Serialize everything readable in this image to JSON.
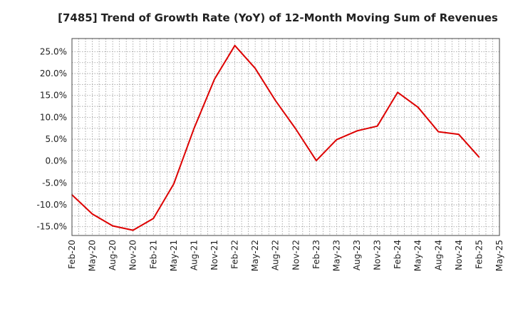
{
  "chart_data": {
    "type": "line",
    "title": "[7485]  Trend of Growth Rate (YoY) of 12-Month Moving Sum of Revenues",
    "xlabel": "",
    "ylabel": "",
    "x_tick_labels": [
      "Feb-20",
      "May-20",
      "Aug-20",
      "Nov-20",
      "Feb-21",
      "May-21",
      "Aug-21",
      "Nov-21",
      "Feb-22",
      "May-22",
      "Aug-22",
      "Nov-22",
      "Feb-23",
      "May-23",
      "Aug-23",
      "Nov-23",
      "Feb-24",
      "May-24",
      "Aug-24",
      "Nov-24",
      "Feb-25",
      "May-25"
    ],
    "y_ticks": [
      -15,
      -10,
      -5,
      0,
      5,
      10,
      15,
      20,
      25
    ],
    "y_tick_labels": [
      "-15.0%",
      "-10.0%",
      "-5.0%",
      "0.0%",
      "5.0%",
      "10.0%",
      "15.0%",
      "20.0%",
      "25.0%"
    ],
    "ylim": [
      -17,
      28
    ],
    "grid": true,
    "series": [
      {
        "color": "#dd0000",
        "x": [
          "Feb-20",
          "May-20",
          "Aug-20",
          "Nov-20",
          "Feb-21",
          "May-21",
          "Aug-21",
          "Nov-21",
          "Feb-22",
          "May-22",
          "Aug-22",
          "Nov-22",
          "Feb-23",
          "May-23",
          "Aug-23",
          "Nov-23",
          "Feb-24",
          "May-24",
          "Aug-24",
          "Nov-24",
          "Feb-25"
        ],
        "values": [
          -7.7,
          -12.1,
          -14.8,
          -15.8,
          -13.1,
          -5.2,
          7.5,
          18.7,
          26.4,
          21.2,
          13.8,
          7.3,
          0.1,
          4.9,
          6.9,
          8.0,
          15.7,
          12.3,
          6.7,
          6.1,
          0.9
        ]
      }
    ]
  }
}
